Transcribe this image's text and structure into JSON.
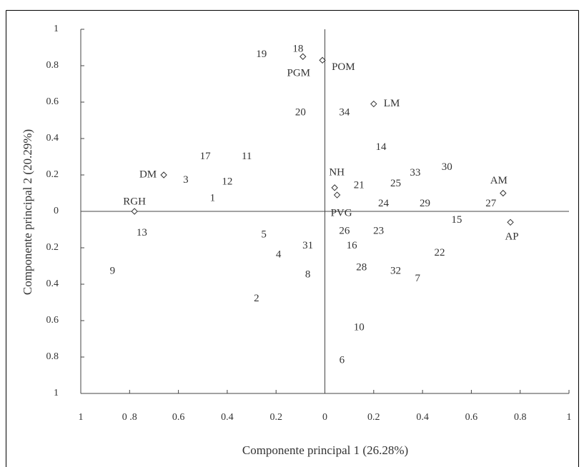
{
  "chart_data": {
    "type": "scatter",
    "xlabel": "Componente principal 1 (26.28%)",
    "ylabel": "Componente principal 2 (20.29%)",
    "xlim": [
      -1,
      1
    ],
    "ylim": [
      -1,
      1
    ],
    "xticks": [
      {
        "value": -1,
        "label": "1"
      },
      {
        "value": -0.8,
        "label": "0 .8"
      },
      {
        "value": -0.6,
        "label": "0.6"
      },
      {
        "value": -0.4,
        "label": "0.4"
      },
      {
        "value": -0.2,
        "label": "0.2"
      },
      0,
      0.2,
      0.4,
      0.6,
      0.8,
      1
    ],
    "yticks": [
      1,
      0.8,
      0.6,
      0.4,
      0.2,
      0,
      {
        "value": -0.2,
        "label": "0.2"
      },
      {
        "value": -0.4,
        "label": "0.4"
      },
      {
        "value": -0.6,
        "label": "0.6"
      },
      {
        "value": -0.8,
        "label": "0.8"
      },
      {
        "value": -1,
        "label": "1"
      }
    ],
    "variables": {
      "labels": [
        "DM",
        "RGH",
        "PGM",
        "POM",
        "LM",
        "NH",
        "PVG",
        "AM",
        "AP"
      ],
      "x": [
        -0.66,
        -0.78,
        -0.09,
        -0.01,
        0.2,
        0.04,
        0.05,
        0.73,
        0.76
      ],
      "y": [
        0.2,
        0,
        0.85,
        0.83,
        0.59,
        0.13,
        0.09,
        0.1,
        -0.06
      ]
    },
    "genotypes": {
      "labels": [
        "19",
        "18",
        "20",
        "34",
        "14",
        "17",
        "11",
        "3",
        "12",
        "1",
        "21",
        "25",
        "33",
        "30",
        "24",
        "29",
        "27",
        "15",
        "13",
        "5",
        "26",
        "23",
        "31",
        "16",
        "4",
        "22",
        "28",
        "32",
        "7",
        "9",
        "8",
        "2",
        "10",
        "6"
      ],
      "x": [
        -0.26,
        -0.11,
        -0.1,
        0.08,
        0.23,
        -0.49,
        -0.32,
        -0.57,
        -0.4,
        -0.46,
        0.14,
        0.29,
        0.37,
        0.5,
        0.24,
        0.41,
        0.68,
        0.54,
        -0.75,
        -0.25,
        0.08,
        0.22,
        -0.07,
        0.11,
        -0.19,
        0.47,
        0.15,
        0.29,
        0.38,
        -0.87,
        -0.07,
        -0.28,
        0.14,
        0.07
      ],
      "y": [
        0.86,
        0.89,
        0.54,
        0.54,
        0.35,
        0.3,
        0.3,
        0.17,
        0.16,
        0.07,
        0.14,
        0.15,
        0.21,
        0.24,
        0.04,
        0.04,
        0.04,
        -0.05,
        -0.12,
        -0.13,
        -0.11,
        -0.11,
        -0.19,
        -0.19,
        -0.24,
        -0.23,
        -0.31,
        -0.33,
        -0.37,
        -0.33,
        -0.35,
        -0.48,
        -0.64,
        -0.82
      ]
    }
  }
}
